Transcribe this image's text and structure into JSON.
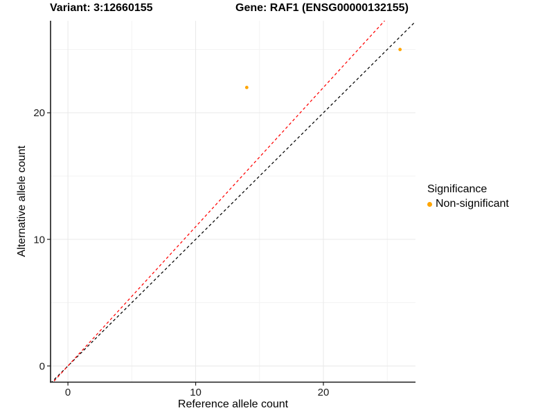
{
  "chart_data": {
    "type": "scatter",
    "titles": {
      "left": "Variant: 3:12660155",
      "right": "Gene: RAF1 (ENSG00000132155)"
    },
    "xlabel": "Reference allele count",
    "ylabel": "Alternative allele count",
    "xlim": [
      -1.36,
      27.21
    ],
    "ylim": [
      -1.28,
      27.27
    ],
    "x_ticks": {
      "major": [
        0,
        10,
        20
      ],
      "minor": [
        5,
        15,
        25
      ]
    },
    "y_ticks": {
      "major": [
        0,
        10,
        20
      ],
      "minor": [
        5,
        15,
        25
      ]
    },
    "points": [
      {
        "x": 14,
        "y": 22
      },
      {
        "x": 26,
        "y": 25
      }
    ],
    "lines": [
      {
        "name": "identity-line",
        "slope": 1.0,
        "intercept": 0,
        "color": "#000000",
        "dash": "4,3.5"
      },
      {
        "name": "fitted-line",
        "slope": 1.1,
        "intercept": 0,
        "color": "#FF0000",
        "dash": "4,3.5"
      }
    ],
    "legend": {
      "title": "Significance",
      "items": [
        {
          "label": "Non-significant",
          "color": "#FFA500"
        }
      ]
    },
    "colors": {
      "point": "#FFA500",
      "grid_major": "#E8E8E8",
      "grid_minor": "#F3F3F3",
      "axis": "#1A1A1A",
      "tick_label": "#1A1A1A"
    }
  }
}
